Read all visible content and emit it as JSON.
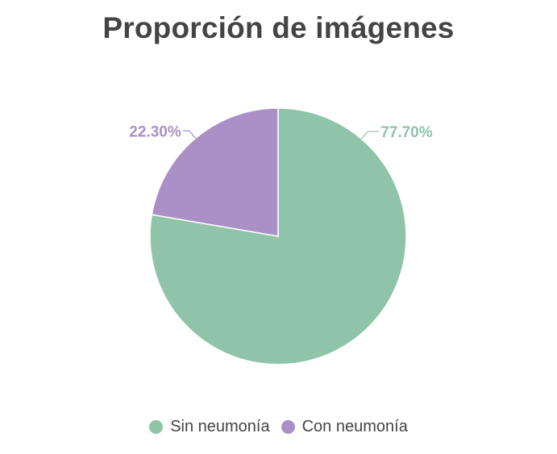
{
  "chart_data": {
    "type": "pie",
    "title": "Proporción de imágenes",
    "slices": [
      {
        "label": "Sin neumonía",
        "value": 77.7,
        "display": "77.70%",
        "color": "#8fc4a8"
      },
      {
        "label": "Con neumonía",
        "value": 22.3,
        "display": "22.30%",
        "color": "#aa90c6"
      }
    ],
    "legend_position": "bottom"
  }
}
